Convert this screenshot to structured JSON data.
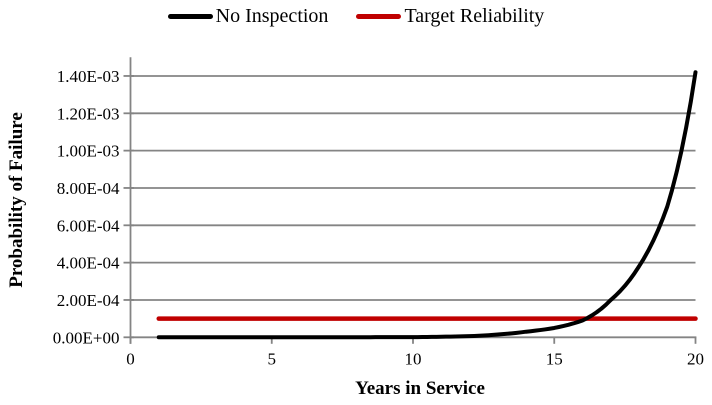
{
  "chart_data": {
    "type": "line",
    "title": "",
    "xlabel": "Years in Service",
    "ylabel": "Probability of Failure",
    "xlim": [
      0,
      20
    ],
    "ylim": [
      0,
      0.0015
    ],
    "grid": "horizontal",
    "legend_position": "top-center",
    "x_ticks": {
      "values": [
        0,
        5,
        10,
        15,
        20
      ],
      "labels": [
        "0",
        "5",
        "10",
        "15",
        "20"
      ]
    },
    "y_ticks": {
      "values": [
        0,
        0.0002,
        0.0004,
        0.0006,
        0.0008,
        0.001,
        0.0012,
        0.0014
      ],
      "labels": [
        "0.00E+00",
        "2.00E-04",
        "4.00E-04",
        "6.00E-04",
        "8.00E-04",
        "1.00E-03",
        "1.20E-03",
        "1.40E-03"
      ]
    },
    "series": [
      {
        "name": "No Inspection",
        "color": "#000000",
        "stroke_width": 4,
        "interp": "log",
        "x": [
          1,
          2,
          3,
          4,
          5,
          6,
          7,
          8,
          9,
          10,
          11,
          12,
          13,
          14,
          15,
          16,
          17,
          18,
          19,
          20
        ],
        "y": [
          5e-09,
          1e-08,
          2e-08,
          4e-08,
          8e-08,
          1.6e-07,
          3e-07,
          5e-07,
          7e-07,
          1e-06,
          3e-06,
          6e-06,
          1.5e-05,
          3e-05,
          5e-05,
          9e-05,
          0.0002,
          0.00038,
          0.0007,
          0.00142
        ]
      },
      {
        "name": "Target Reliability",
        "color": "#C00000",
        "stroke_width": 4.5,
        "interp": "linear",
        "x": [
          1,
          20
        ],
        "y": [
          0.0001,
          0.0001
        ]
      }
    ],
    "colors": {
      "gridline": "#848484",
      "axis": "#848484",
      "tick_text": "#000000"
    }
  }
}
